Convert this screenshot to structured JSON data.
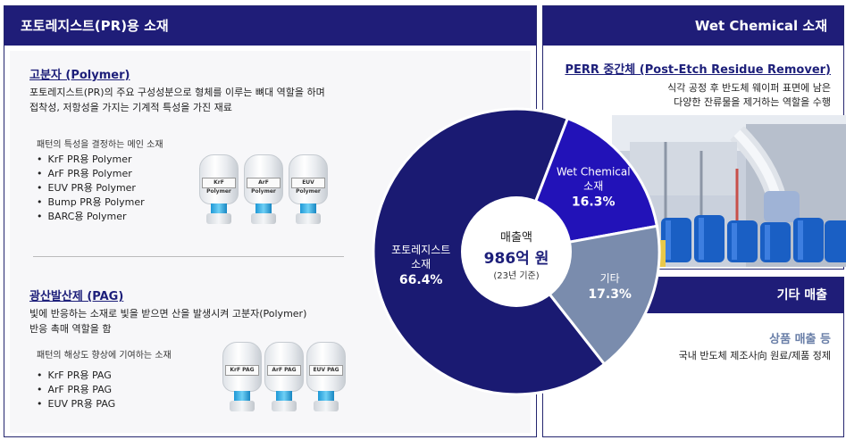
{
  "left": {
    "header": "포토레지스트(PR)용 소재",
    "polymer": {
      "title": "고분자 (Polymer)",
      "desc1": "포토레지스트(PR)의 주요 구성성분으로 형체를 이루는 뼈대 역할을 하며",
      "desc2": "접착성, 저항성을 가지는 기계적 특성을 가진 재료",
      "sub": "패턴의 특성을 결정하는 메인 소재",
      "items": [
        "KrF PR용 Polymer",
        "ArF PR용 Polymer",
        "EUV PR용 Polymer",
        "Bump PR용 Polymer",
        "BARC용 Polymer"
      ],
      "bottles": [
        "KrF Polymer",
        "ArF Polymer",
        "EUV Polymer"
      ]
    },
    "pag": {
      "title": "광산발산제 (PAG)",
      "desc1": "빛에 반응하는 소재로 빛을 받으면 산을 발생시켜 고분자(Polymer)",
      "desc2": "반응 촉매 역할을 함",
      "sub": "패턴의 해상도 향상에 기여하는 소재",
      "items": [
        "KrF PR용 PAG",
        "ArF PR용 PAG",
        "EUV PR용 PAG"
      ],
      "bottles": [
        "KrF PAG",
        "ArF PAG",
        "EUV PAG"
      ]
    }
  },
  "right_top": {
    "header": "Wet Chemical 소재",
    "title": "PERR 중간체 (Post-Etch Residue Remover)",
    "desc1": "식각 공정 후 반도체 웨이퍼 표면에 남은",
    "desc2": "다양한 잔류물을 제거하는 역할을 수행"
  },
  "right_bottom": {
    "header": "기타 매출",
    "title": "상품 매출 등",
    "desc": "국내 반도체 제조사向 원료/제품 정제"
  },
  "center": {
    "label": "매출액",
    "value": "986억 원",
    "note": "(23년 기준)"
  },
  "chart_data": {
    "type": "pie",
    "slices": [
      {
        "label": "포토레지스트\n소재",
        "value": 66.4,
        "value_label": "66.4%",
        "color": "#1a1a72"
      },
      {
        "label": "Wet Chemical\n소재",
        "value": 16.3,
        "value_label": "16.3%",
        "color": "#2212b8"
      },
      {
        "label": "기타",
        "value": 17.3,
        "value_label": "17.3%",
        "color": "#7a8cad"
      }
    ],
    "center_label": "매출액 986억 원 (23년 기준)"
  },
  "colors": {
    "navy": "#1f1d78",
    "accent": "#1d1f7a"
  }
}
